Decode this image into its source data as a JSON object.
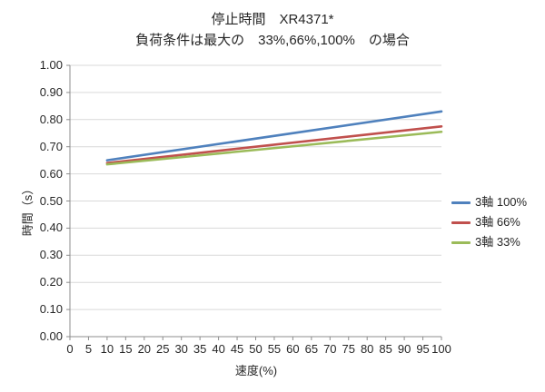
{
  "chart_data": {
    "type": "line",
    "title": "停止時間　XR4371*",
    "subtitle": "負荷条件は最大の　33%,66%,100%　の場合",
    "xlabel": "速度(%)",
    "ylabel": "時間（s）",
    "xlim": [
      0,
      100
    ],
    "ylim": [
      0.0,
      1.0
    ],
    "x_ticks": [
      0,
      5,
      10,
      15,
      20,
      25,
      30,
      35,
      40,
      45,
      50,
      55,
      60,
      65,
      70,
      75,
      80,
      85,
      90,
      95,
      100
    ],
    "y_ticks": [
      "0.00",
      "0.10",
      "0.20",
      "0.30",
      "0.40",
      "0.50",
      "0.60",
      "0.70",
      "0.80",
      "0.90",
      "1.00"
    ],
    "grid": "horizontal-gridlines-on",
    "legend_position": "right",
    "x": [
      10,
      100
    ],
    "series": [
      {
        "name": "3軸 100%",
        "color": "#4F81BD",
        "values": [
          0.65,
          0.83
        ]
      },
      {
        "name": "3軸 66%",
        "color": "#C0504D",
        "values": [
          0.64,
          0.775
        ]
      },
      {
        "name": "3軸 33%",
        "color": "#9BBB59",
        "values": [
          0.635,
          0.755
        ]
      }
    ],
    "colors": {
      "gridline": "#D9D9D9",
      "axis": "#8C8C8C",
      "text": "#262626",
      "background": "#FFFFFF"
    }
  }
}
